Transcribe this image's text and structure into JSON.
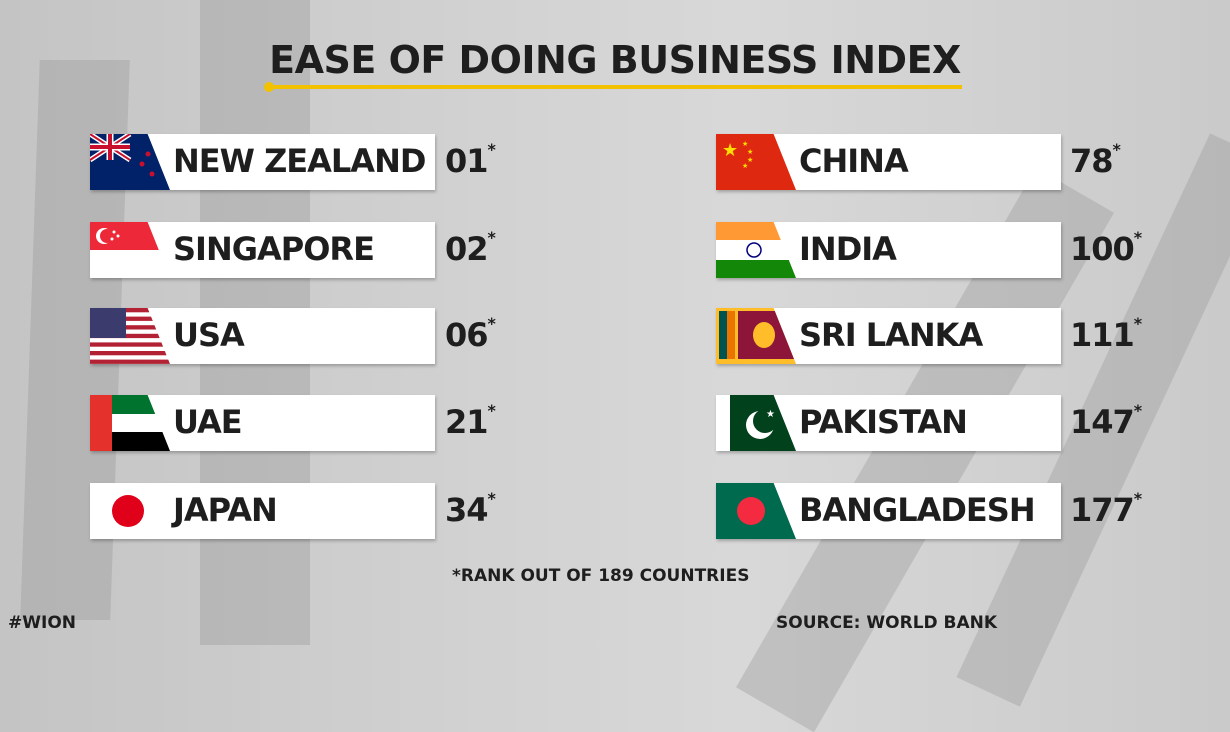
{
  "title": "EASE OF DOING BUSINESS INDEX",
  "left": [
    {
      "country": "NEW ZEALAND",
      "rank": "01",
      "flag": "new-zealand-flag"
    },
    {
      "country": "SINGAPORE",
      "rank": "02",
      "flag": "singapore-flag"
    },
    {
      "country": "USA",
      "rank": "06",
      "flag": "usa-flag"
    },
    {
      "country": "UAE",
      "rank": "21",
      "flag": "uae-flag"
    },
    {
      "country": "JAPAN",
      "rank": "34",
      "flag": "japan-flag"
    }
  ],
  "right": [
    {
      "country": "CHINA",
      "rank": "78",
      "flag": "china-flag"
    },
    {
      "country": "INDIA",
      "rank": "100",
      "flag": "india-flag"
    },
    {
      "country": "SRI LANKA",
      "rank": "111",
      "flag": "sri-lanka-flag"
    },
    {
      "country": "PAKISTAN",
      "rank": "147",
      "flag": "pakistan-flag"
    },
    {
      "country": "BANGLADESH",
      "rank": "177",
      "flag": "bangladesh-flag"
    }
  ],
  "asterisk": "*",
  "footnote": "*RANK OUT OF 189 COUNTRIES",
  "hashtag": "#WION",
  "source": "SOURCE: WORLD BANK",
  "colors": {
    "accent": "#f2c200",
    "text": "#1e1e1e"
  }
}
